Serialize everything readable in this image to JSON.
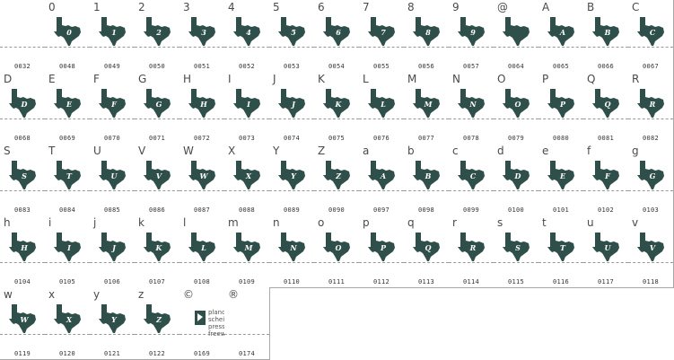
{
  "colors": {
    "glyph": "#2f4f4a",
    "letter": "#ffffff",
    "border": "#a8a8a8",
    "text": "#4a4a4a"
  },
  "cells": [
    {
      "ch": "",
      "code": "0032",
      "glyph": "",
      "letter": ""
    },
    {
      "ch": "0",
      "code": "0048",
      "glyph": "texas",
      "letter": "0"
    },
    {
      "ch": "1",
      "code": "0049",
      "glyph": "texas",
      "letter": "1"
    },
    {
      "ch": "2",
      "code": "0050",
      "glyph": "texas",
      "letter": "2"
    },
    {
      "ch": "3",
      "code": "0051",
      "glyph": "texas",
      "letter": "3"
    },
    {
      "ch": "4",
      "code": "0052",
      "glyph": "texas",
      "letter": "4"
    },
    {
      "ch": "5",
      "code": "0053",
      "glyph": "texas",
      "letter": "5"
    },
    {
      "ch": "6",
      "code": "0054",
      "glyph": "texas",
      "letter": "6"
    },
    {
      "ch": "7",
      "code": "0055",
      "glyph": "texas",
      "letter": "7"
    },
    {
      "ch": "8",
      "code": "0056",
      "glyph": "texas",
      "letter": "8"
    },
    {
      "ch": "9",
      "code": "0057",
      "glyph": "texas",
      "letter": "9"
    },
    {
      "ch": "@",
      "code": "0064",
      "glyph": "texas",
      "letter": ""
    },
    {
      "ch": "A",
      "code": "0065",
      "glyph": "texas",
      "letter": "A"
    },
    {
      "ch": "B",
      "code": "0066",
      "glyph": "texas",
      "letter": "B"
    },
    {
      "ch": "C",
      "code": "0067",
      "glyph": "texas",
      "letter": "C"
    },
    {
      "ch": "D",
      "code": "0068",
      "glyph": "texas",
      "letter": "D"
    },
    {
      "ch": "E",
      "code": "0069",
      "glyph": "texas",
      "letter": "E"
    },
    {
      "ch": "F",
      "code": "0070",
      "glyph": "texas",
      "letter": "F"
    },
    {
      "ch": "G",
      "code": "0071",
      "glyph": "texas",
      "letter": "G"
    },
    {
      "ch": "H",
      "code": "0072",
      "glyph": "texas",
      "letter": "H"
    },
    {
      "ch": "I",
      "code": "0073",
      "glyph": "texas",
      "letter": "I"
    },
    {
      "ch": "J",
      "code": "0074",
      "glyph": "texas",
      "letter": "J"
    },
    {
      "ch": "K",
      "code": "0075",
      "glyph": "texas",
      "letter": "K"
    },
    {
      "ch": "L",
      "code": "0076",
      "glyph": "texas",
      "letter": "L"
    },
    {
      "ch": "M",
      "code": "0077",
      "glyph": "texas",
      "letter": "M"
    },
    {
      "ch": "N",
      "code": "0078",
      "glyph": "texas",
      "letter": "N"
    },
    {
      "ch": "O",
      "code": "0079",
      "glyph": "texas",
      "letter": "O"
    },
    {
      "ch": "P",
      "code": "0080",
      "glyph": "texas",
      "letter": "P"
    },
    {
      "ch": "Q",
      "code": "0081",
      "glyph": "texas",
      "letter": "Q"
    },
    {
      "ch": "R",
      "code": "0082",
      "glyph": "texas",
      "letter": "R"
    },
    {
      "ch": "S",
      "code": "0083",
      "glyph": "texas",
      "letter": "S"
    },
    {
      "ch": "T",
      "code": "0084",
      "glyph": "texas",
      "letter": "T"
    },
    {
      "ch": "U",
      "code": "0085",
      "glyph": "texas",
      "letter": "U"
    },
    {
      "ch": "V",
      "code": "0086",
      "glyph": "texas",
      "letter": "V"
    },
    {
      "ch": "W",
      "code": "0087",
      "glyph": "texas",
      "letter": "W"
    },
    {
      "ch": "X",
      "code": "0088",
      "glyph": "texas",
      "letter": "X"
    },
    {
      "ch": "Y",
      "code": "0089",
      "glyph": "texas",
      "letter": "Y"
    },
    {
      "ch": "Z",
      "code": "0090",
      "glyph": "texas",
      "letter": "Z"
    },
    {
      "ch": "a",
      "code": "0097",
      "glyph": "texas",
      "letter": "A"
    },
    {
      "ch": "b",
      "code": "0098",
      "glyph": "texas",
      "letter": "B"
    },
    {
      "ch": "c",
      "code": "0099",
      "glyph": "texas",
      "letter": "C"
    },
    {
      "ch": "d",
      "code": "0100",
      "glyph": "texas",
      "letter": "D"
    },
    {
      "ch": "e",
      "code": "0101",
      "glyph": "texas",
      "letter": "E"
    },
    {
      "ch": "f",
      "code": "0102",
      "glyph": "texas",
      "letter": "F"
    },
    {
      "ch": "g",
      "code": "0103",
      "glyph": "texas",
      "letter": "G"
    },
    {
      "ch": "h",
      "code": "0104",
      "glyph": "texas",
      "letter": "H"
    },
    {
      "ch": "i",
      "code": "0105",
      "glyph": "texas",
      "letter": "I"
    },
    {
      "ch": "j",
      "code": "0106",
      "glyph": "texas",
      "letter": "J"
    },
    {
      "ch": "k",
      "code": "0107",
      "glyph": "texas",
      "letter": "K"
    },
    {
      "ch": "l",
      "code": "0108",
      "glyph": "texas",
      "letter": "L"
    },
    {
      "ch": "m",
      "code": "0109",
      "glyph": "texas",
      "letter": "M"
    },
    {
      "ch": "n",
      "code": "0110",
      "glyph": "texas",
      "letter": "N"
    },
    {
      "ch": "o",
      "code": "0111",
      "glyph": "texas",
      "letter": "O"
    },
    {
      "ch": "p",
      "code": "0112",
      "glyph": "texas",
      "letter": "P"
    },
    {
      "ch": "q",
      "code": "0113",
      "glyph": "texas",
      "letter": "Q"
    },
    {
      "ch": "r",
      "code": "0114",
      "glyph": "texas",
      "letter": "R"
    },
    {
      "ch": "s",
      "code": "0115",
      "glyph": "texas",
      "letter": "S"
    },
    {
      "ch": "t",
      "code": "0116",
      "glyph": "texas",
      "letter": "T"
    },
    {
      "ch": "u",
      "code": "0117",
      "glyph": "texas",
      "letter": "U"
    },
    {
      "ch": "v",
      "code": "0118",
      "glyph": "texas",
      "letter": "V"
    },
    {
      "ch": "w",
      "code": "0119",
      "glyph": "texas",
      "letter": "W"
    },
    {
      "ch": "x",
      "code": "0120",
      "glyph": "texas",
      "letter": "X"
    },
    {
      "ch": "y",
      "code": "0121",
      "glyph": "texas",
      "letter": "Y"
    },
    {
      "ch": "z",
      "code": "0122",
      "glyph": "texas",
      "letter": "Z"
    },
    {
      "ch": "©",
      "code": "0169",
      "glyph": "note",
      "letter": ""
    },
    {
      "ch": "®",
      "code": "0174",
      "glyph": "",
      "letter": ""
    }
  ],
  "copyright_note": [
    "planck foam",
    "scheilady dragon press",
    "freeware"
  ]
}
